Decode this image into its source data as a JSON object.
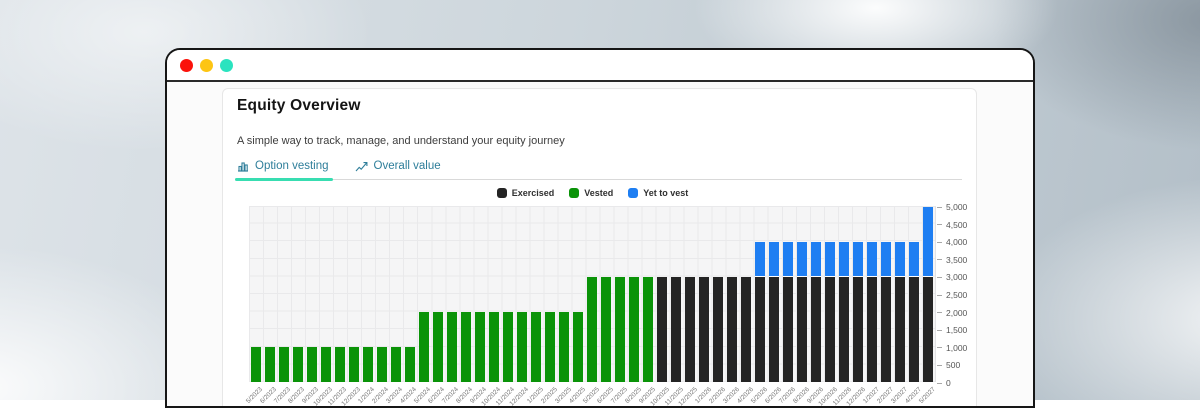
{
  "window": {
    "traffic_lights": [
      {
        "name": "close",
        "color": "#fb120b"
      },
      {
        "name": "minimize",
        "color": "#fdc513"
      },
      {
        "name": "zoom",
        "color": "#2ae3bf"
      }
    ]
  },
  "card": {
    "title": "Equity Overview",
    "subtitle": "A simple way to track, manage, and understand your equity journey",
    "tabs": [
      {
        "label": "Option vesting",
        "icon": "bar-chart-icon",
        "active": true
      },
      {
        "label": "Overall value",
        "icon": "line-chart-icon",
        "active": false
      }
    ],
    "accent_underline_color": "#38ddb1",
    "tab_text_color": "#2e7e9a"
  },
  "chart_data": {
    "type": "bar",
    "stacked": true,
    "title": "",
    "xlabel": "",
    "ylabel": "",
    "grid": true,
    "legend_position": "top",
    "y_axis_side": "right",
    "ylim": [
      0,
      5000
    ],
    "ytick_step": 500,
    "ytick_labels": [
      "0",
      "500",
      "1,000",
      "1,500",
      "2,000",
      "2,500",
      "3,000",
      "3,500",
      "4,000",
      "4,500",
      "5,000"
    ],
    "x": [
      "5/2023",
      "6/2023",
      "7/2023",
      "8/2023",
      "9/2023",
      "10/2023",
      "11/2023",
      "12/2023",
      "1/2024",
      "2/2024",
      "3/2024",
      "4/2024",
      "5/2024",
      "6/2024",
      "7/2024",
      "8/2024",
      "9/2024",
      "10/2024",
      "11/2024",
      "12/2024",
      "1/2025",
      "2/2025",
      "3/2025",
      "4/2025",
      "5/2025",
      "6/2025",
      "7/2025",
      "8/2025",
      "9/2025",
      "10/2025",
      "11/2025",
      "12/2025",
      "1/2026",
      "2/2026",
      "3/2026",
      "4/2026",
      "5/2026",
      "6/2026",
      "7/2026",
      "8/2026",
      "9/2026",
      "10/2026",
      "11/2026",
      "12/2026",
      "1/2027",
      "2/2027",
      "3/2027",
      "4/2027",
      "5/2027"
    ],
    "series": [
      {
        "name": "Exercised",
        "color": "#242424",
        "values": [
          0,
          0,
          0,
          0,
          0,
          0,
          0,
          0,
          0,
          0,
          0,
          0,
          0,
          0,
          0,
          0,
          0,
          0,
          0,
          0,
          0,
          0,
          0,
          0,
          0,
          0,
          0,
          0,
          0,
          3000,
          3000,
          3000,
          3000,
          3000,
          3000,
          3000,
          3000,
          3000,
          3000,
          3000,
          3000,
          3000,
          3000,
          3000,
          3000,
          3000,
          3000,
          3000,
          3000
        ]
      },
      {
        "name": "Vested",
        "color": "#0a9308",
        "values": [
          1000,
          1000,
          1000,
          1000,
          1000,
          1000,
          1000,
          1000,
          1000,
          1000,
          1000,
          1000,
          2000,
          2000,
          2000,
          2000,
          2000,
          2000,
          2000,
          2000,
          2000,
          2000,
          2000,
          2000,
          3000,
          3000,
          3000,
          3000,
          3000,
          0,
          0,
          0,
          0,
          0,
          0,
          0,
          0,
          0,
          0,
          0,
          0,
          0,
          0,
          0,
          0,
          0,
          0,
          0,
          0
        ]
      },
      {
        "name": "Yet to vest",
        "color": "#1e7ef2",
        "values": [
          0,
          0,
          0,
          0,
          0,
          0,
          0,
          0,
          0,
          0,
          0,
          0,
          0,
          0,
          0,
          0,
          0,
          0,
          0,
          0,
          0,
          0,
          0,
          0,
          0,
          0,
          0,
          0,
          0,
          0,
          0,
          0,
          0,
          0,
          0,
          0,
          1000,
          1000,
          1000,
          1000,
          1000,
          1000,
          1000,
          1000,
          1000,
          1000,
          1000,
          1000,
          2000
        ]
      }
    ]
  }
}
